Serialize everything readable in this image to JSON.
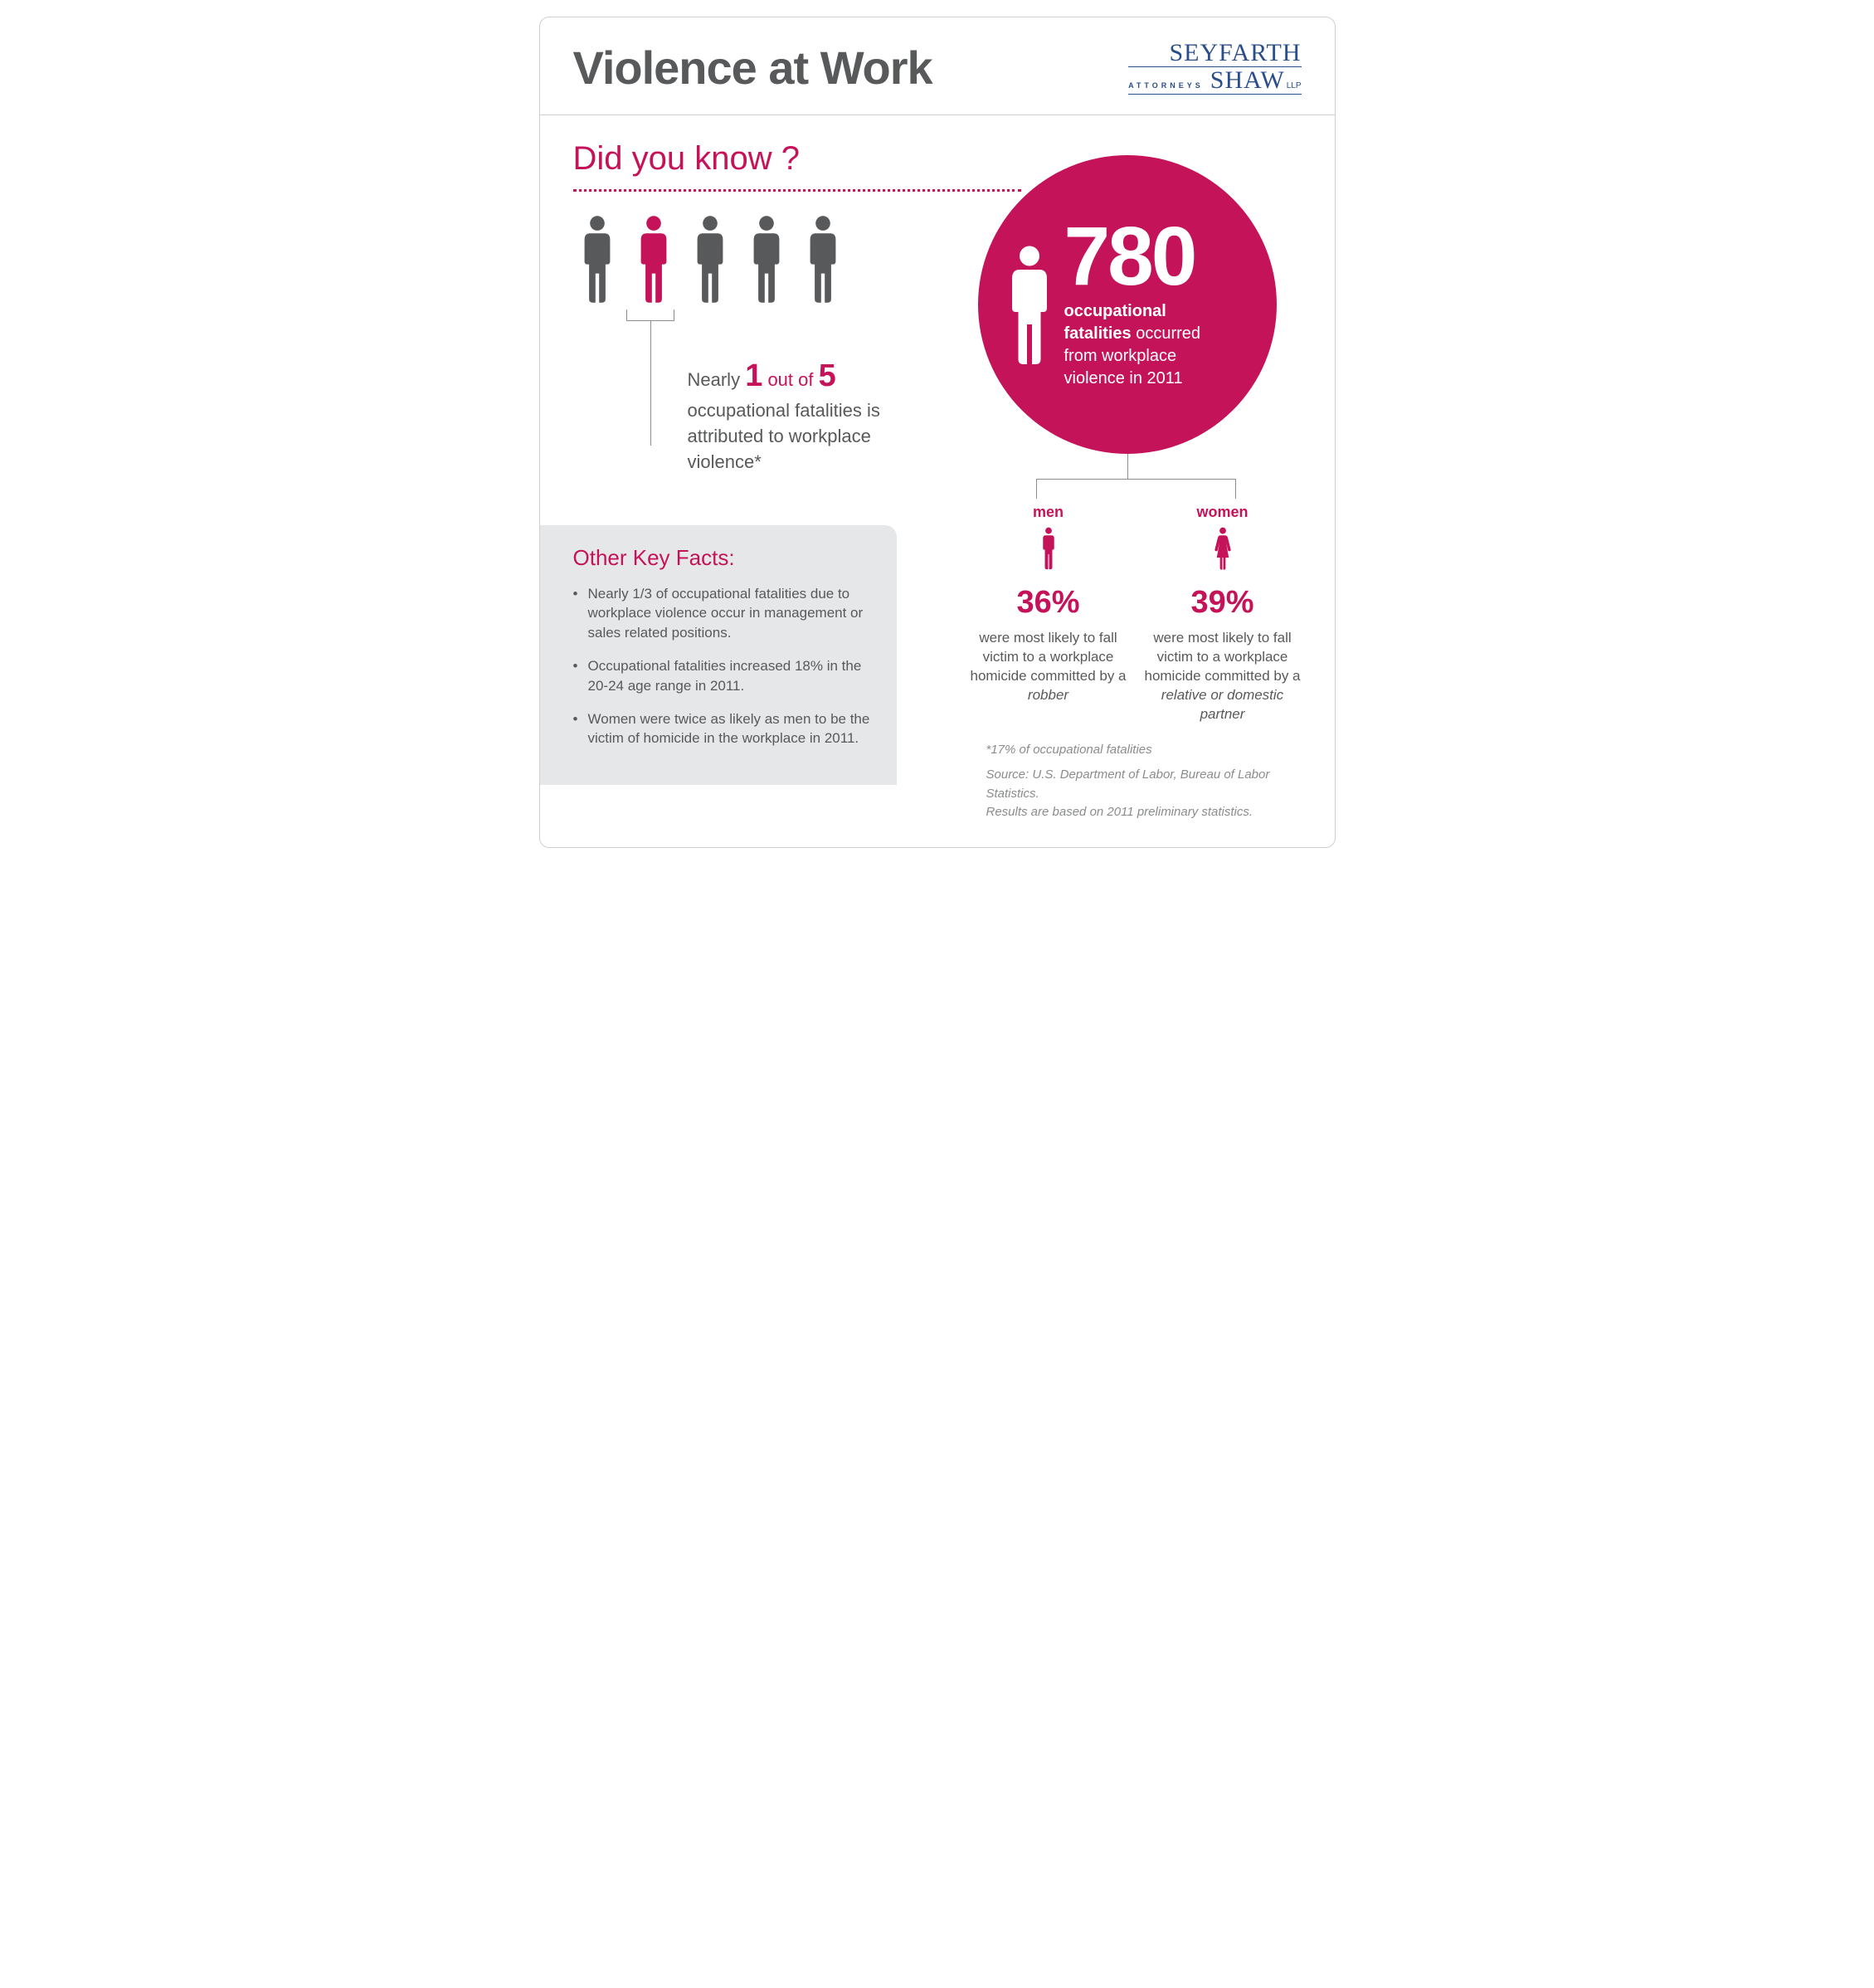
{
  "colors": {
    "accent": "#c5135a",
    "text_dark": "#58595b",
    "text_muted": "#8a8c8e",
    "logo_blue": "#2a4e8a",
    "facts_bg": "#e6e7e8",
    "border": "#cfcfcf",
    "white": "#ffffff"
  },
  "header": {
    "title": "Violence at Work",
    "logo": {
      "line1": "SEYFARTH",
      "attorneys": "ATTORNEYS",
      "line2": "SHAW",
      "suffix": "LLP"
    }
  },
  "dyk": {
    "heading": "Did you know ?",
    "people_count": 5,
    "highlight_index": 1,
    "ratio_prefix": "Nearly ",
    "ratio_n": "1",
    "ratio_mid": " out of ",
    "ratio_d": "5",
    "ratio_rest": "occupational fatalities is attributed to workplace violence*"
  },
  "circle": {
    "number": "780",
    "line1_bold": "occupational",
    "line2_bold": "fatalities",
    "line2_rest": " occurred",
    "line3": "from workplace",
    "line4": "violence in 2011"
  },
  "genders": {
    "men": {
      "label": "men",
      "pct": "36%",
      "text_pre": "were most likely to fall victim to a workplace homicide committed by a ",
      "text_em": "robber"
    },
    "women": {
      "label": "women",
      "pct": "39%",
      "text_pre": "were most likely to fall victim to a workplace homicide committed by a ",
      "text_em": "relative or domestic partner"
    }
  },
  "facts": {
    "title": "Other Key Facts:",
    "items": [
      "Nearly 1/3 of occupational fatalities due to workplace violence occur in management or sales related positions.",
      "Occupational fatalities increased 18% in the 20-24 age range in 2011.",
      "Women were twice as likely as men to be the victim of homicide in the workplace in 2011."
    ]
  },
  "footnotes": {
    "star": "*17% of occupational fatalities",
    "source1": "Source: U.S. Department of Labor, Bureau of Labor Statistics.",
    "source2": "Results are based on 2011 preliminary statistics."
  }
}
